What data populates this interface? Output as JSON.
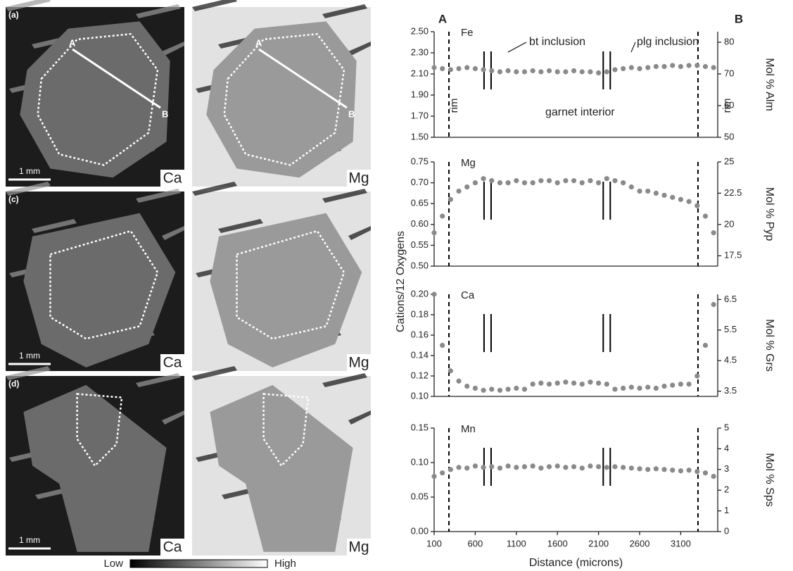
{
  "figure": {
    "panels": [
      {
        "label": "(a)",
        "left": "Ca",
        "right": "Mg",
        "scale": "1 mm",
        "points": [
          "A",
          "B",
          "A",
          "B"
        ]
      },
      {
        "label": "(c)",
        "left": "Ca",
        "right": "Mg",
        "scale": "1 mm"
      },
      {
        "label": "(d)",
        "left": "Ca",
        "right": "Mg",
        "scale": "1 mm"
      }
    ],
    "colorbar": {
      "low": "Low",
      "high": "High"
    }
  },
  "chart_data": [
    {
      "type": "scatter",
      "label": "Fe",
      "y2label": "Mol % Alm",
      "color": "#8a8a8a",
      "annotations": [
        "A",
        "B",
        "bt inclusion",
        "plg inclusion",
        "rim",
        "garnet interior",
        "rim"
      ],
      "vlines": [
        280,
        3310
      ],
      "breaks": [
        750,
        2200
      ],
      "xlim": [
        100,
        3550
      ],
      "ylim": [
        1.5,
        2.5
      ],
      "yticks": [
        {
          "value": 1.5,
          "label": "1.50"
        },
        {
          "value": 1.7,
          "label": "1.70"
        },
        {
          "value": 1.9,
          "label": "1.90"
        },
        {
          "value": 2.1,
          "label": "2.10"
        },
        {
          "value": 2.3,
          "label": "2.30"
        },
        {
          "value": 2.5,
          "label": "2.50"
        }
      ],
      "y2lim": [
        50,
        83.33
      ],
      "y2ticks": [
        50,
        60,
        70,
        80
      ],
      "x": [
        100,
        200,
        300,
        400,
        500,
        600,
        700,
        800,
        900,
        1000,
        1100,
        1200,
        1300,
        1400,
        1500,
        1600,
        1700,
        1800,
        1900,
        2000,
        2100,
        2200,
        2300,
        2400,
        2500,
        2600,
        2700,
        2800,
        2900,
        3000,
        3100,
        3200,
        3300,
        3400,
        3500
      ],
      "values": [
        2.16,
        2.15,
        2.14,
        2.15,
        2.16,
        2.15,
        2.14,
        2.13,
        2.12,
        2.13,
        2.12,
        2.12,
        2.13,
        2.12,
        2.13,
        2.12,
        2.12,
        2.13,
        2.12,
        2.12,
        2.11,
        2.12,
        2.14,
        2.15,
        2.16,
        2.15,
        2.16,
        2.17,
        2.17,
        2.18,
        2.17,
        2.18,
        2.18,
        2.17,
        2.16
      ]
    },
    {
      "type": "scatter",
      "label": "Mg",
      "y2label": "Mol % Pyp",
      "color": "#8a8a8a",
      "vlines": [
        280,
        3310
      ],
      "breaks": [
        750,
        2200
      ],
      "xlim": [
        100,
        3550
      ],
      "ylim": [
        0.5,
        0.75
      ],
      "yticks": [
        {
          "value": 0.5,
          "label": "0.50"
        },
        0.55,
        {
          "value": 0.6,
          "label": "0.60"
        },
        0.65,
        {
          "value": 0.7,
          "label": "0.70"
        },
        0.75
      ],
      "y2lim": [
        16.67,
        25
      ],
      "y2ticks": [
        17.5,
        20,
        22.5,
        25
      ],
      "x": [
        100,
        200,
        300,
        400,
        500,
        600,
        700,
        800,
        900,
        1000,
        1100,
        1200,
        1300,
        1400,
        1500,
        1600,
        1700,
        1800,
        1900,
        2000,
        2100,
        2200,
        2300,
        2400,
        2500,
        2600,
        2700,
        2800,
        2900,
        3000,
        3100,
        3200,
        3300,
        3400,
        3500
      ],
      "values": [
        0.58,
        0.62,
        0.66,
        0.68,
        0.69,
        0.7,
        0.71,
        0.705,
        0.7,
        0.7,
        0.705,
        0.7,
        0.7,
        0.705,
        0.705,
        0.7,
        0.705,
        0.705,
        0.7,
        0.705,
        0.7,
        0.71,
        0.705,
        0.7,
        0.69,
        0.68,
        0.68,
        0.675,
        0.67,
        0.665,
        0.66,
        0.655,
        0.645,
        0.62,
        0.58
      ]
    },
    {
      "type": "scatter",
      "label": "Ca",
      "y2label": "Mol % Grs",
      "ylabel": "Cations/12 Oxygens",
      "color": "#8a8a8a",
      "vlines": [
        280,
        3310
      ],
      "breaks": [
        750,
        2200
      ],
      "xlim": [
        100,
        3550
      ],
      "ylim": [
        0.1,
        0.2
      ],
      "yticks": [
        {
          "value": 0.1,
          "label": "0.10"
        },
        0.12,
        0.14,
        0.16,
        0.18,
        {
          "value": 0.2,
          "label": "0.20"
        }
      ],
      "y2lim": [
        3.33,
        6.67
      ],
      "y2ticks": [
        3.5,
        4.5,
        5.5,
        6.5
      ],
      "x": [
        100,
        200,
        300,
        400,
        500,
        600,
        700,
        800,
        900,
        1000,
        1100,
        1200,
        1300,
        1400,
        1500,
        1600,
        1700,
        1800,
        1900,
        2000,
        2100,
        2200,
        2300,
        2400,
        2500,
        2600,
        2700,
        2800,
        2900,
        3000,
        3100,
        3200,
        3300,
        3400,
        3500
      ],
      "values": [
        0.2,
        0.15,
        0.125,
        0.115,
        0.11,
        0.108,
        0.106,
        0.107,
        0.106,
        0.107,
        0.108,
        0.107,
        0.112,
        0.113,
        0.112,
        0.113,
        0.114,
        0.113,
        0.112,
        0.114,
        0.113,
        0.112,
        0.107,
        0.108,
        0.109,
        0.108,
        0.109,
        0.108,
        0.11,
        0.111,
        0.112,
        0.112,
        0.12,
        0.15,
        0.19
      ]
    },
    {
      "type": "scatter",
      "label": "Mn",
      "y2label": "Mol % Sps",
      "xlabel": "Distance (microns)",
      "color": "#8a8a8a",
      "vlines": [
        280,
        3310
      ],
      "breaks": [
        750,
        2200
      ],
      "xlim": [
        100,
        3550
      ],
      "xticks": [
        100,
        600,
        1100,
        1600,
        2100,
        2600,
        3100
      ],
      "ylim": [
        0,
        0.15
      ],
      "yticks": [
        {
          "value": 0,
          "label": "0.00"
        },
        0.05,
        {
          "value": 0.1,
          "label": "0.10"
        },
        0.15
      ],
      "y2lim": [
        0,
        5
      ],
      "y2ticks": [
        0,
        1,
        2,
        3,
        4,
        5
      ],
      "x": [
        100,
        200,
        300,
        400,
        500,
        600,
        700,
        800,
        900,
        1000,
        1100,
        1200,
        1300,
        1400,
        1500,
        1600,
        1700,
        1800,
        1900,
        2000,
        2100,
        2200,
        2300,
        2400,
        2500,
        2600,
        2700,
        2800,
        2900,
        3000,
        3100,
        3200,
        3300,
        3400,
        3500
      ],
      "values": [
        0.08,
        0.085,
        0.09,
        0.093,
        0.092,
        0.095,
        0.093,
        0.094,
        0.092,
        0.095,
        0.093,
        0.094,
        0.095,
        0.092,
        0.094,
        0.095,
        0.093,
        0.094,
        0.092,
        0.095,
        0.094,
        0.093,
        0.094,
        0.093,
        0.092,
        0.091,
        0.09,
        0.091,
        0.09,
        0.089,
        0.088,
        0.089,
        0.087,
        0.085,
        0.08
      ]
    }
  ]
}
